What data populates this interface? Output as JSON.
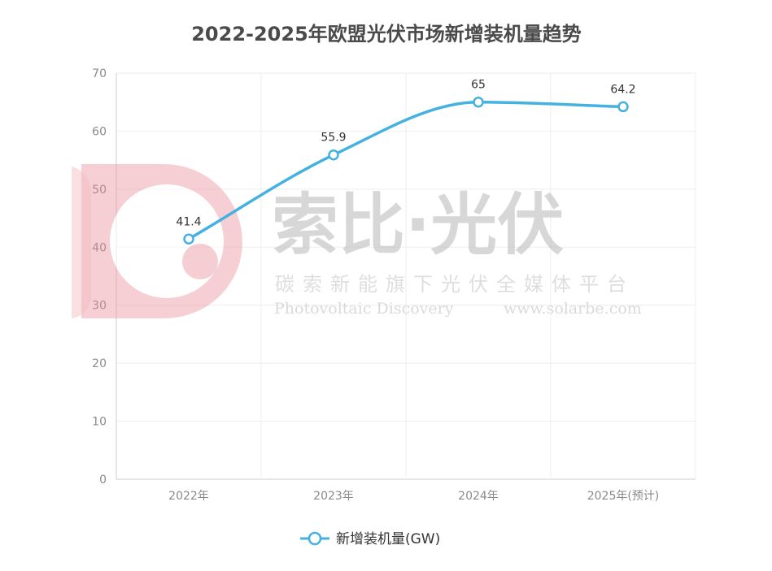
{
  "chart_data": {
    "type": "line",
    "title": "2022-2025年欧盟光伏市场新增装机量趋势",
    "categories": [
      "2022年",
      "2023年",
      "2024年",
      "2025年(预计)"
    ],
    "series": [
      {
        "name": "新增装机量(GW)",
        "values": [
          41.4,
          55.9,
          65,
          64.2
        ],
        "color": "#44b1e1"
      }
    ],
    "data_labels": [
      "41.4",
      "55.9",
      "65",
      "64.2"
    ],
    "ylim": [
      0,
      70
    ],
    "yticks": [
      "0",
      "10",
      "20",
      "30",
      "40",
      "50",
      "60",
      "70"
    ],
    "grid": true,
    "legend": "bottom-center",
    "smooth": true
  },
  "watermark": {
    "logo_letter": "D",
    "name": "索比·光伏",
    "tagline": "碳索新能旗下光伏全媒体平台",
    "english": "Photovoltaic Discovery",
    "url": "www.solarbe.com",
    "logo_color": "#e88a95"
  }
}
